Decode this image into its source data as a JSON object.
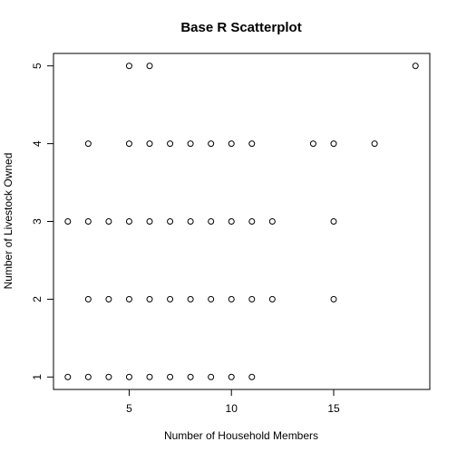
{
  "chart_data": {
    "type": "scatter",
    "title": "Base R Scatterplot",
    "xlabel": "Number of Household Members",
    "ylabel": "Number of Livestock Owned",
    "xlim": [
      1.3,
      19.7
    ],
    "ylim": [
      0.84,
      5.16
    ],
    "xticks": [
      5,
      10,
      15
    ],
    "yticks": [
      1,
      2,
      3,
      4,
      5
    ],
    "grid": false,
    "points": [
      {
        "x": 5,
        "y": 5
      },
      {
        "x": 6,
        "y": 5
      },
      {
        "x": 19,
        "y": 5
      },
      {
        "x": 3,
        "y": 4
      },
      {
        "x": 5,
        "y": 4
      },
      {
        "x": 6,
        "y": 4
      },
      {
        "x": 7,
        "y": 4
      },
      {
        "x": 8,
        "y": 4
      },
      {
        "x": 9,
        "y": 4
      },
      {
        "x": 10,
        "y": 4
      },
      {
        "x": 11,
        "y": 4
      },
      {
        "x": 14,
        "y": 4
      },
      {
        "x": 15,
        "y": 4
      },
      {
        "x": 17,
        "y": 4
      },
      {
        "x": 2,
        "y": 3
      },
      {
        "x": 3,
        "y": 3
      },
      {
        "x": 4,
        "y": 3
      },
      {
        "x": 5,
        "y": 3
      },
      {
        "x": 6,
        "y": 3
      },
      {
        "x": 7,
        "y": 3
      },
      {
        "x": 8,
        "y": 3
      },
      {
        "x": 9,
        "y": 3
      },
      {
        "x": 10,
        "y": 3
      },
      {
        "x": 11,
        "y": 3
      },
      {
        "x": 12,
        "y": 3
      },
      {
        "x": 15,
        "y": 3
      },
      {
        "x": 3,
        "y": 2
      },
      {
        "x": 4,
        "y": 2
      },
      {
        "x": 5,
        "y": 2
      },
      {
        "x": 6,
        "y": 2
      },
      {
        "x": 7,
        "y": 2
      },
      {
        "x": 8,
        "y": 2
      },
      {
        "x": 9,
        "y": 2
      },
      {
        "x": 10,
        "y": 2
      },
      {
        "x": 11,
        "y": 2
      },
      {
        "x": 12,
        "y": 2
      },
      {
        "x": 15,
        "y": 2
      },
      {
        "x": 2,
        "y": 1
      },
      {
        "x": 3,
        "y": 1
      },
      {
        "x": 4,
        "y": 1
      },
      {
        "x": 5,
        "y": 1
      },
      {
        "x": 6,
        "y": 1
      },
      {
        "x": 7,
        "y": 1
      },
      {
        "x": 8,
        "y": 1
      },
      {
        "x": 9,
        "y": 1
      },
      {
        "x": 10,
        "y": 1
      },
      {
        "x": 11,
        "y": 1
      }
    ]
  }
}
